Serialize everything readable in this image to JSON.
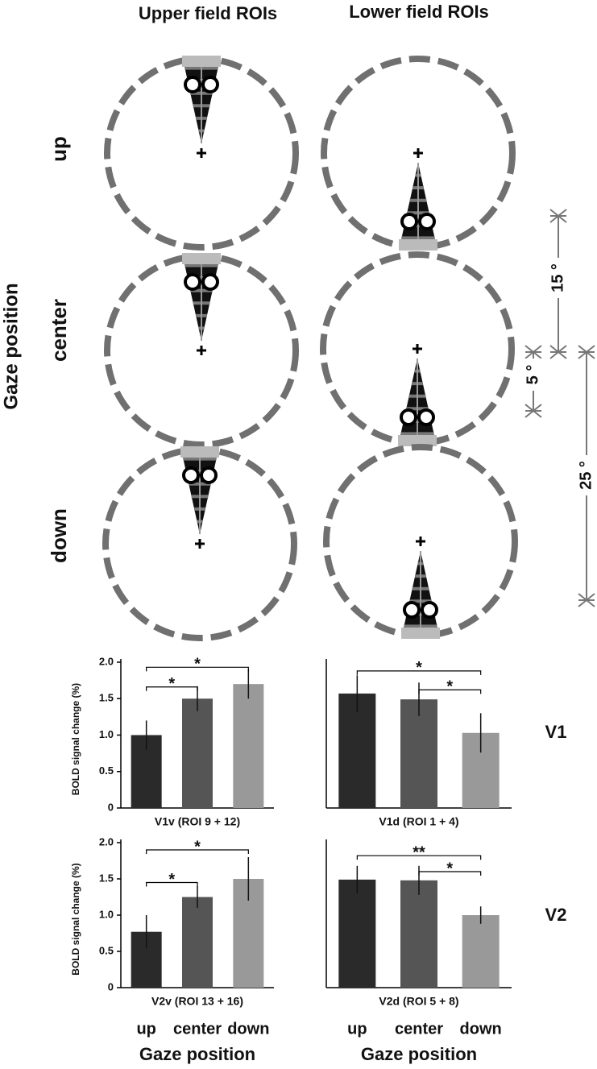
{
  "diagram": {
    "column_titles": [
      "Upper field ROIs",
      "Lower field ROIs"
    ],
    "row_labels": [
      "up",
      "center",
      "down"
    ],
    "side_label": "Gaze position",
    "scale_labels": [
      "15 °",
      "5 °",
      "25 °"
    ],
    "area_labels": [
      "V1",
      "V2"
    ]
  },
  "chart_data": [
    {
      "type": "bar",
      "title": "V1v (ROI 9 + 12)",
      "ylabel": "BOLD signal change (%)",
      "values": [
        1.0,
        1.5,
        1.7
      ],
      "errors": [
        0.2,
        0.17,
        0.2
      ],
      "colors": [
        "#2a2a2a",
        "#555555",
        "#999999"
      ],
      "ylim": [
        0,
        2
      ],
      "yticks": [
        0,
        0.5,
        {
          "value": 1,
          "label": "1.0"
        },
        1.5,
        {
          "value": 2,
          "label": "2.0"
        }
      ],
      "annotations": [
        "*",
        "*"
      ]
    },
    {
      "type": "bar",
      "title": "V1d (ROI 1 + 4)",
      "values": [
        1.57,
        1.49,
        1.03
      ],
      "errors": [
        0.25,
        0.23,
        0.27
      ],
      "colors": [
        "#2a2a2a",
        "#555555",
        "#999999"
      ],
      "ylim": [
        0,
        2
      ],
      "annotations": [
        "*",
        "*"
      ]
    },
    {
      "type": "bar",
      "title": "V2v (ROI 13 + 16)",
      "ylabel": "BOLD signal change (%)",
      "xlabel": "Gaze position",
      "categories": [
        "up",
        "center",
        "down"
      ],
      "values": [
        0.77,
        1.25,
        1.5
      ],
      "errors": [
        0.23,
        0.15,
        0.3
      ],
      "colors": [
        "#2a2a2a",
        "#555555",
        "#999999"
      ],
      "ylim": [
        0,
        2
      ],
      "yticks": [
        0,
        0.5,
        {
          "value": 1,
          "label": "1.0"
        },
        1.5,
        {
          "value": 2,
          "label": "2.0"
        }
      ],
      "annotations": [
        "*",
        "*"
      ]
    },
    {
      "type": "bar",
      "title": "V2d (ROI 5 + 8)",
      "xlabel": "Gaze position",
      "categories": [
        "up",
        "center",
        "down"
      ],
      "values": [
        1.49,
        1.48,
        1.0
      ],
      "errors": [
        0.19,
        0.2,
        0.12
      ],
      "colors": [
        "#2a2a2a",
        "#555555",
        "#999999"
      ],
      "ylim": [
        0,
        2
      ],
      "annotations": [
        "**",
        "*"
      ]
    }
  ]
}
